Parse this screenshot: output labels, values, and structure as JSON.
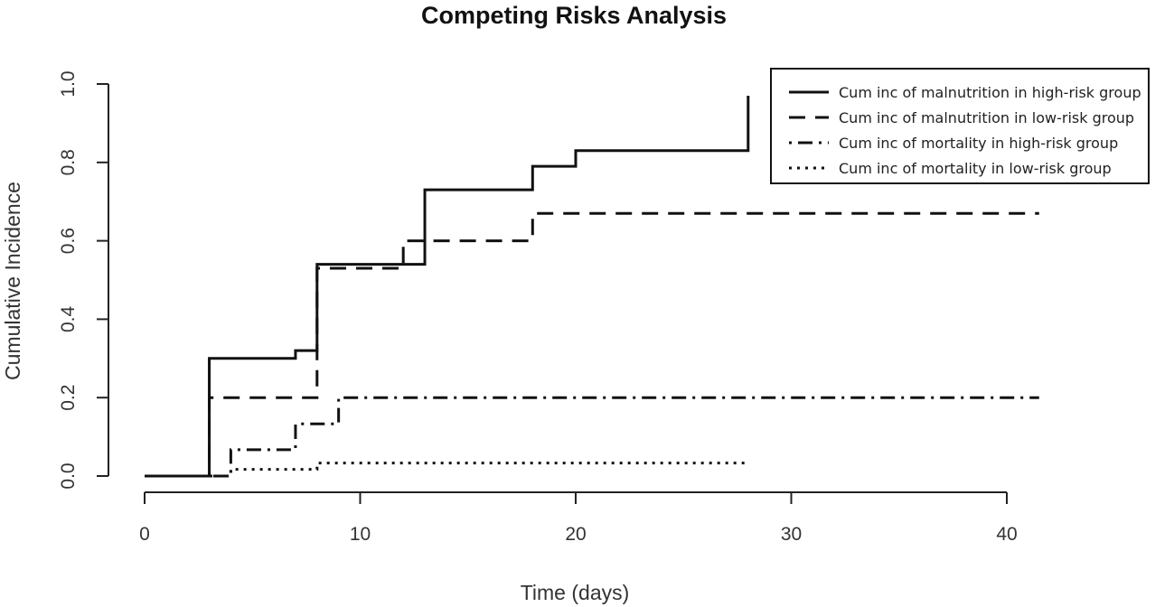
{
  "chart_data": {
    "type": "line",
    "title": "Competing Risks Analysis",
    "xlabel": "Time (days)",
    "ylabel": "Cumulative Incidence",
    "xlim": [
      0,
      41.5
    ],
    "ylim": [
      0,
      1.0
    ],
    "xticks": [
      0,
      10,
      20,
      30,
      40
    ],
    "yticks": [
      "0.0",
      "0.2",
      "0.4",
      "0.6",
      "0.8",
      "1.0"
    ],
    "grid": false,
    "legend_position": "top-right",
    "step": true,
    "series": [
      {
        "name": "Cum inc of malnutrition in high-risk group",
        "style": "solid",
        "x": [
          0,
          3,
          7,
          8,
          13,
          18,
          20,
          28,
          28
        ],
        "y": [
          0,
          0.3,
          0.32,
          0.54,
          0.73,
          0.79,
          0.83,
          0.83,
          0.97
        ]
      },
      {
        "name": "Cum inc of malnutrition in low-risk group",
        "style": "dashed",
        "x": [
          0,
          3,
          8,
          12,
          18,
          41.5
        ],
        "y": [
          0,
          0.2,
          0.53,
          0.6,
          0.67,
          0.67
        ]
      },
      {
        "name": "Cum inc of mortality in high-risk group",
        "style": "dotdash",
        "x": [
          0,
          4,
          7,
          9,
          41.5
        ],
        "y": [
          0,
          0.067,
          0.133,
          0.2,
          0.2
        ]
      },
      {
        "name": "Cum inc of mortality in low-risk group",
        "style": "dotted",
        "x": [
          0,
          4,
          8,
          28
        ],
        "y": [
          0,
          0.017,
          0.033,
          0.033
        ]
      }
    ]
  }
}
